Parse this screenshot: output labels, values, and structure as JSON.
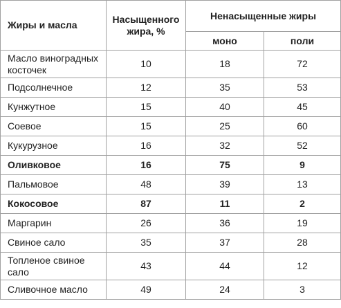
{
  "header": {
    "col_name": "Жиры и масла",
    "col_saturated": "Насыщенного жира, %",
    "col_unsaturated": "Ненасыщенные жиры",
    "sub_mono": "моно",
    "sub_poli": "поли"
  },
  "rows": [
    {
      "name": "Масло виноградных косточек",
      "saturated": "10",
      "mono": "18",
      "poli": "72",
      "bold": false
    },
    {
      "name": "Подсолнечное",
      "saturated": "12",
      "mono": "35",
      "poli": "53",
      "bold": false
    },
    {
      "name": "Кунжутное",
      "saturated": "15",
      "mono": "40",
      "poli": "45",
      "bold": false
    },
    {
      "name": "Соевое",
      "saturated": "15",
      "mono": "25",
      "poli": "60",
      "bold": false
    },
    {
      "name": "Кукурузное",
      "saturated": "16",
      "mono": "32",
      "poli": "52",
      "bold": false
    },
    {
      "name": "Оливковое",
      "saturated": "16",
      "mono": "75",
      "poli": "9",
      "bold": true
    },
    {
      "name": "Пальмовое",
      "saturated": "48",
      "mono": "39",
      "poli": "13",
      "bold": false
    },
    {
      "name": "Кокосовое",
      "saturated": "87",
      "mono": "11",
      "poli": "2",
      "bold": true
    },
    {
      "name": "Маргарин",
      "saturated": "26",
      "mono": "36",
      "poli": "19",
      "bold": false
    },
    {
      "name": "Свиное сало",
      "saturated": "35",
      "mono": "37",
      "poli": "28",
      "bold": false
    },
    {
      "name": "Топленое свиное сало",
      "saturated": "43",
      "mono": "44",
      "poli": "12",
      "bold": false
    },
    {
      "name": "Сливочное масло",
      "saturated": "49",
      "mono": "24",
      "poli": "3",
      "bold": false
    }
  ]
}
